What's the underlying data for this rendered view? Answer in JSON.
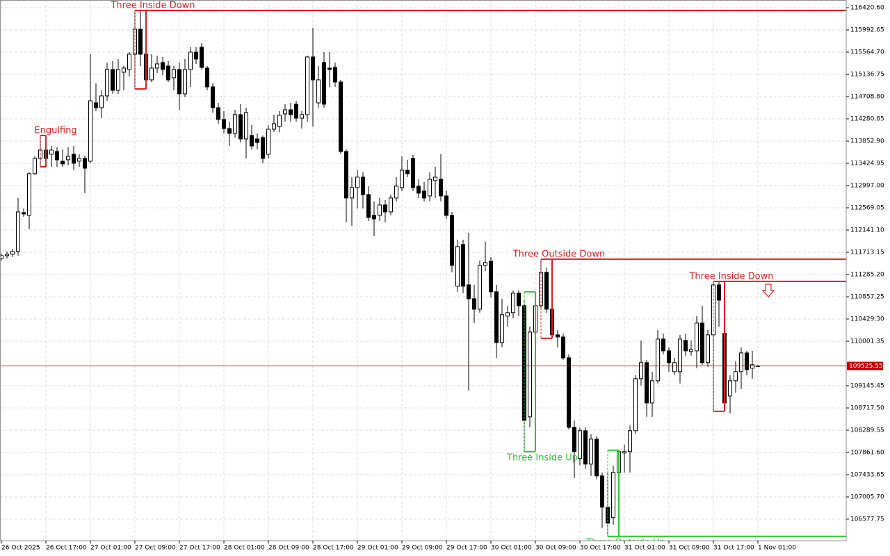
{
  "chart_data": {
    "type": "candlestick",
    "categories": [
      "26 Oct 2025",
      null,
      null,
      null,
      null,
      null,
      null,
      null,
      "26 Oct 17:00",
      null,
      null,
      null,
      null,
      null,
      null,
      null,
      "27 Oct 01:00",
      null,
      null,
      null,
      null,
      null,
      null,
      null,
      "27 Oct 09:00",
      null,
      null,
      null,
      null,
      null,
      null,
      null,
      "27 Oct 17:00",
      null,
      null,
      null,
      null,
      null,
      null,
      null,
      "28 Oct 01:00",
      null,
      null,
      null,
      null,
      null,
      null,
      null,
      "28 Oct 09:00",
      null,
      null,
      null,
      null,
      null,
      null,
      null,
      "28 Oct 17:00",
      null,
      null,
      null,
      null,
      null,
      null,
      null,
      "29 Oct 01:00",
      null,
      null,
      null,
      null,
      null,
      null,
      null,
      "29 Oct 09:00",
      null,
      null,
      null,
      null,
      null,
      null,
      null,
      "29 Oct 17:00",
      null,
      null,
      null,
      null,
      null,
      null,
      null,
      "30 Oct 01:00",
      null,
      null,
      null,
      null,
      null,
      null,
      null,
      "30 Oct 09:00",
      null,
      null,
      null,
      null,
      null,
      null,
      null,
      "30 Oct 17:00",
      null,
      null,
      null,
      null,
      null,
      null,
      null,
      "31 Oct 01:00",
      null,
      null,
      null,
      null,
      null,
      null,
      null,
      "31 Oct 09:00",
      null,
      null,
      null,
      null,
      null,
      null,
      null,
      "31 Oct 17:00",
      null,
      null,
      null,
      null,
      null,
      null,
      null,
      "1 Nov 01:00"
    ],
    "open": [
      111594,
      111648,
      111675,
      111728,
      112477,
      112423,
      113226,
      113520,
      113680,
      113600,
      113653,
      113466,
      113493,
      113600,
      113466,
      113520,
      113466,
      114589,
      114496,
      114723,
      115231,
      114830,
      115178,
      115231,
      115525,
      116006,
      115525,
      115031,
      115258,
      115365,
      115298,
      115071,
      115231,
      114763,
      115231,
      115565,
      115659,
      115258,
      114897,
      114496,
      114268,
      114095,
      114001,
      114362,
      113894,
      113961,
      113894,
      113921,
      113600,
      114081,
      114135,
      114375,
      114455,
      114563,
      114295,
      114362,
      115472,
      114589,
      115365,
      115258,
      115271,
      114990,
      113653,
      112758,
      112958,
      113159,
      112824,
      112423,
      112423,
      112624,
      112490,
      112758,
      112958,
      113292,
      113520,
      112985,
      112891,
      112798,
      113092,
      113119,
      112798,
      112423,
      111060,
      111862,
      111086,
      110819,
      110618,
      111461,
      111541,
      110953,
      109976,
      110485,
      110552,
      110926,
      110685,
      108546,
      110177,
      110685,
      111327,
      110618,
      110124,
      110083,
      109682,
      108345,
      107744,
      108279,
      107637,
      108118,
      107410,
      106808,
      106607,
      107476,
      107851,
      107878,
      108279,
      109281,
      109589,
      108813,
      109241,
      110043,
      109816,
      109415,
      109415,
      110017,
      109803,
      109816,
      110351,
      109589,
      110124,
      111086,
      110150,
      108947,
      109241,
      109415,
      109776,
      109482,
      109525
    ],
    "high": [
      111688,
      111728,
      111781,
      112758,
      112557,
      113252,
      113560,
      113961,
      113827,
      113760,
      113734,
      113693,
      113734,
      113760,
      113600,
      113573,
      115525,
      114964,
      114830,
      115365,
      115391,
      115432,
      115298,
      115565,
      116367,
      116367,
      116367,
      115525,
      115498,
      115472,
      115391,
      115298,
      115365,
      115432,
      115659,
      115659,
      115739,
      115298,
      114964,
      114589,
      114429,
      114228,
      114455,
      114563,
      114496,
      114161,
      114001,
      113961,
      114161,
      114362,
      114429,
      114563,
      114589,
      114629,
      114429,
      115498,
      116033,
      115298,
      115565,
      115565,
      115365,
      115031,
      113693,
      113159,
      113292,
      113252,
      112985,
      112691,
      112758,
      112717,
      112824,
      113159,
      113560,
      113493,
      113587,
      113119,
      113065,
      113252,
      113359,
      113600,
      112891,
      112490,
      111955,
      111955,
      112089,
      111086,
      111554,
      111915,
      111621,
      111086,
      110819,
      110685,
      110979,
      110979,
      110819,
      110284,
      110953,
      111581,
      111421,
      110685,
      110217,
      110150,
      109749,
      108479,
      108345,
      108345,
      108212,
      108172,
      107476,
      107476,
      107610,
      107904,
      108011,
      108386,
      109348,
      110017,
      109642,
      109415,
      110217,
      110150,
      109883,
      109682,
      110124,
      110150,
      110017,
      110485,
      110685,
      110217,
      111153,
      111153,
      111153,
      109348,
      109616,
      109883,
      109816,
      109816,
      109549
    ],
    "low": [
      111554,
      111594,
      111621,
      111648,
      112397,
      112156,
      113199,
      113359,
      113466,
      113359,
      113359,
      113359,
      113386,
      113292,
      113359,
      112851,
      113426,
      114429,
      114295,
      114629,
      114763,
      114763,
      114830,
      115097,
      114857,
      115298,
      114857,
      114990,
      115164,
      115124,
      114990,
      114830,
      114455,
      114696,
      114897,
      115338,
      115231,
      114830,
      114402,
      114188,
      114001,
      113760,
      113921,
      113827,
      113520,
      113693,
      113693,
      113426,
      113520,
      114028,
      114028,
      114228,
      114228,
      114228,
      114095,
      114228,
      114135,
      114496,
      114496,
      114897,
      114897,
      113600,
      112290,
      112223,
      112557,
      112557,
      112316,
      112022,
      112316,
      112290,
      112423,
      112691,
      112891,
      113159,
      112891,
      112758,
      112691,
      112691,
      112758,
      112691,
      112356,
      111327,
      110953,
      110926,
      109054,
      110351,
      110552,
      111354,
      110846,
      109682,
      109883,
      110284,
      110445,
      110485,
      107878,
      108345,
      110017,
      110618,
      110552,
      110057,
      109883,
      109642,
      108305,
      107369,
      107610,
      107543,
      107410,
      107343,
      106407,
      106246,
      106474,
      106273,
      107476,
      107476,
      108212,
      109148,
      108546,
      108546,
      109188,
      109749,
      109415,
      109348,
      109188,
      109723,
      109723,
      109482,
      109549,
      109509,
      108653,
      110284,
      108653,
      108613,
      109014,
      109081,
      109348,
      109281,
      109509
    ],
    "close": [
      111648,
      111675,
      111728,
      112490,
      112450,
      113226,
      113520,
      113680,
      113520,
      113680,
      113493,
      113413,
      113560,
      113426,
      113520,
      113332,
      114629,
      114496,
      114723,
      115231,
      114830,
      115231,
      115258,
      115525,
      116006,
      115525,
      115031,
      115258,
      115338,
      115231,
      115031,
      115231,
      114763,
      115231,
      115565,
      115432,
      115271,
      114897,
      114496,
      114268,
      114095,
      114001,
      114362,
      113894,
      114402,
      113760,
      113827,
      113520,
      114081,
      114188,
      114349,
      114455,
      114362,
      114295,
      114362,
      115472,
      115031,
      115031,
      114563,
      115231,
      114990,
      113653,
      112758,
      112958,
      113159,
      112824,
      112383,
      112356,
      112624,
      112490,
      112758,
      112985,
      113292,
      113226,
      112958,
      112851,
      112758,
      113119,
      113159,
      112798,
      112423,
      111461,
      111822,
      111060,
      110819,
      110618,
      111461,
      111514,
      110953,
      109976,
      110512,
      110552,
      110926,
      110685,
      108479,
      110177,
      110685,
      111327,
      110618,
      110124,
      110083,
      109682,
      108345,
      107878,
      108279,
      107637,
      108118,
      107410,
      106808,
      106500,
      107476,
      107878,
      107878,
      108279,
      109281,
      109589,
      108813,
      109241,
      110043,
      109816,
      109589,
      109589,
      110043,
      109816,
      109843,
      110351,
      109589,
      110124,
      111086,
      110792,
      108813,
      109241,
      109415,
      109776,
      109455,
      109549,
      109525.55
    ],
    "bull_color": "#ffffff",
    "bear_color": "#000000",
    "outline_color": "#000000",
    "ylim": [
      106203,
      116568
    ],
    "yticks": [
      {
        "value": 116420.6,
        "label": "116420.60"
      },
      {
        "value": 115992.65,
        "label": "115992.65"
      },
      {
        "value": 115564.7,
        "label": "115564.70"
      },
      {
        "value": 115136.75,
        "label": "115136.75"
      },
      {
        "value": 114708.8,
        "label": "114708.80"
      },
      {
        "value": 114280.85,
        "label": "114280.85"
      },
      {
        "value": 113852.9,
        "label": "113852.90"
      },
      {
        "value": 113424.95,
        "label": "113424.95"
      },
      {
        "value": 112997,
        "label": "112997.00"
      },
      {
        "value": 112569.05,
        "label": "112569.05"
      },
      {
        "value": 112141.1,
        "label": "112141.10"
      },
      {
        "value": 111713.15,
        "label": "111713.15"
      },
      {
        "value": 111285.2,
        "label": "111285.20"
      },
      {
        "value": 110857.25,
        "label": "110857.25"
      },
      {
        "value": 110429.3,
        "label": "110429.30"
      },
      {
        "value": 110001.35,
        "label": "110001.35"
      },
      {
        "value": 109145.45,
        "label": "109145.45"
      },
      {
        "value": 108717.5,
        "label": "108717.50"
      },
      {
        "value": 108289.55,
        "label": "108289.55"
      },
      {
        "value": 107861.6,
        "label": "107861.60"
      },
      {
        "value": 107433.65,
        "label": "107433.65"
      },
      {
        "value": 107005.7,
        "label": "107005.70"
      },
      {
        "value": 106577.75,
        "label": "106577.75"
      }
    ],
    "grid": true,
    "current_price": 109525.55,
    "current_price_color": "#c00000",
    "patterns": [
      {
        "label": "Engulfing",
        "bars": [
          7,
          8
        ],
        "direction": "down",
        "color": "#e21b1b",
        "level_line": false
      },
      {
        "label": "Three Inside Down",
        "bars": [
          24,
          25,
          26
        ],
        "direction": "down",
        "color": "#e21b1b",
        "level_line": true
      },
      {
        "label": "Three Inside Up",
        "bars": [
          94,
          95,
          96
        ],
        "direction": "up",
        "color": "#2ec42e",
        "level_line": false
      },
      {
        "label": "Three Outside Down",
        "bars": [
          97,
          98,
          99
        ],
        "direction": "down",
        "color": "#e21b1b",
        "level_line": true
      },
      {
        "label": "Three Outside Up",
        "bars": [
          109,
          110,
          111
        ],
        "direction": "up",
        "color": "#2ec42e",
        "level_line": true
      },
      {
        "label": "Three Inside Down",
        "bars": [
          128,
          129,
          130
        ],
        "direction": "down",
        "color": "#e21b1b",
        "level_line": true
      }
    ]
  }
}
